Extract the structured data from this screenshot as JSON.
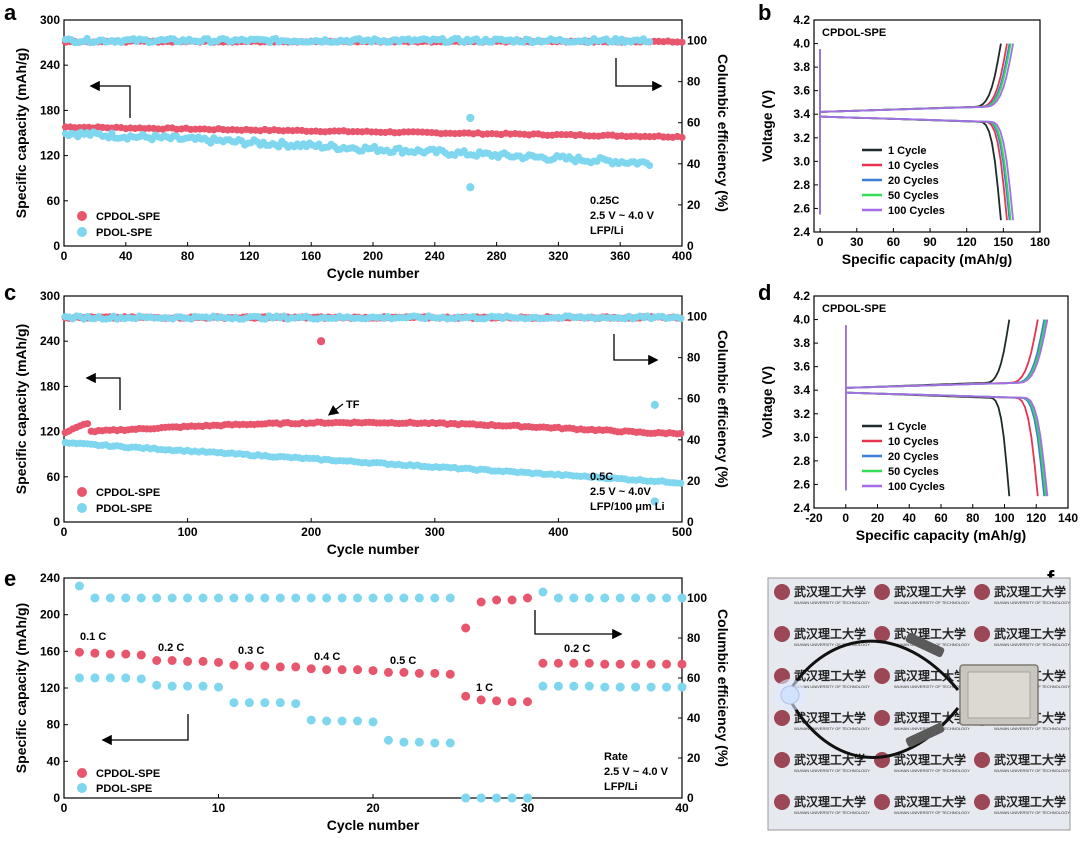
{
  "colors": {
    "cpdol": "#e8566e",
    "pdol": "#7fd6ef",
    "c1": "#1f2a2a",
    "c10": "#e8344e",
    "c20": "#3d7ed6",
    "c50": "#33dd55",
    "c100": "#a66ce8"
  },
  "chart_data": [
    {
      "id": "a",
      "type": "scatter",
      "panel_label": "a",
      "xlabel": "Cycle number",
      "ylabel": "Specific capacity (mAh/g)",
      "y2label": "Columbic efficiency (%)",
      "xlim": [
        0,
        400
      ],
      "ylim": [
        0,
        300
      ],
      "y2lim": [
        0,
        110
      ],
      "xticks": [
        "0",
        "40",
        "80",
        "120",
        "160",
        "200",
        "240",
        "280",
        "320",
        "360",
        "400"
      ],
      "yticks": [
        "0",
        "60",
        "120",
        "180",
        "240",
        "300"
      ],
      "y2ticks": [
        "0",
        "20",
        "40",
        "60",
        "80",
        "100"
      ],
      "series": [
        {
          "name": "CPDOL-SPE",
          "axis": "left",
          "kind": "capacity",
          "start": 158,
          "end": 145,
          "n": 400,
          "jitter": 1
        },
        {
          "name": "PDOL-SPE",
          "axis": "left",
          "kind": "capacity",
          "start": 150,
          "end": 110,
          "n": 380,
          "jitter": 4,
          "outliers": [
            [
              263,
              170
            ],
            [
              263,
              78
            ]
          ]
        },
        {
          "name": "CPDOL-SPE",
          "axis": "right",
          "kind": "efficiency",
          "value": 99.5,
          "n": 400,
          "jitter": 0.3
        },
        {
          "name": "PDOL-SPE",
          "axis": "right",
          "kind": "efficiency",
          "value": 100,
          "n": 380,
          "jitter": 1
        }
      ],
      "legend": [
        "CPDOL-SPE",
        "PDOL-SPE"
      ],
      "annotation": [
        "0.25C",
        "2.5 V ~ 4.0 V",
        "LFP/Li"
      ]
    },
    {
      "id": "b",
      "type": "line",
      "panel_label": "b",
      "title": "CPDOL-SPE",
      "xlabel": "Specific capacity (mAh/g)",
      "ylabel": "Voltage (V)",
      "xlim": [
        -5,
        180
      ],
      "ylim": [
        2.4,
        4.2
      ],
      "xticks": [
        "0",
        "30",
        "60",
        "90",
        "120",
        "150",
        "180"
      ],
      "yticks": [
        "2.4",
        "2.6",
        "2.8",
        "3.0",
        "3.2",
        "3.4",
        "3.6",
        "3.8",
        "4.0",
        "4.2"
      ],
      "series": [
        {
          "name": "1 Cycle",
          "capacity": 148
        },
        {
          "name": "10 Cycles",
          "capacity": 153
        },
        {
          "name": "20 Cycles",
          "capacity": 155
        },
        {
          "name": "50 Cycles",
          "capacity": 156
        },
        {
          "name": "100 Cycles",
          "capacity": 158
        }
      ]
    },
    {
      "id": "c",
      "type": "scatter",
      "panel_label": "c",
      "xlabel": "Cycle number",
      "ylabel": "Specific capacity (mAh/g)",
      "y2label": "Columbic efficiency (%)",
      "xlim": [
        0,
        500
      ],
      "ylim": [
        0,
        300
      ],
      "y2lim": [
        0,
        110
      ],
      "xticks": [
        "0",
        "100",
        "200",
        "300",
        "400",
        "500"
      ],
      "yticks": [
        "0",
        "60",
        "120",
        "180",
        "240",
        "300"
      ],
      "y2ticks": [
        "0",
        "20",
        "40",
        "60",
        "80",
        "100"
      ],
      "series": [
        {
          "name": "CPDOL-SPE",
          "axis": "left",
          "kind": "capacity",
          "start": 118,
          "end": 118,
          "peak": 132,
          "n": 500,
          "jitter": 1
        },
        {
          "name": "PDOL-SPE",
          "axis": "left",
          "kind": "capacity",
          "start": 105,
          "end": 52,
          "n": 500,
          "jitter": 1
        },
        {
          "name": "CPDOL-SPE",
          "axis": "right",
          "kind": "efficiency",
          "value": 99.5,
          "n": 500,
          "jitter": 0.4,
          "outliers": [
            [
              208,
              88
            ]
          ]
        },
        {
          "name": "PDOL-SPE",
          "axis": "right",
          "kind": "efficiency",
          "value": 99.5,
          "n": 500,
          "jitter": 0.8,
          "outliers": [
            [
              478,
              57
            ],
            [
              478,
              10
            ]
          ]
        }
      ],
      "legend": [
        "CPDOL-SPE",
        "PDOL-SPE"
      ],
      "annotation": [
        "0.5C",
        "2.5 V ~ 4.0V",
        "LFP/100 μm Li"
      ],
      "tf_label": "TF"
    },
    {
      "id": "d",
      "type": "line",
      "panel_label": "d",
      "title": "CPDOL-SPE",
      "xlabel": "Specific capacity (mAh/g)",
      "ylabel": "Voltage (V)",
      "xlim": [
        -20,
        140
      ],
      "ylim": [
        2.4,
        4.2
      ],
      "xticks": [
        "-20",
        "0",
        "20",
        "40",
        "60",
        "80",
        "100",
        "120",
        "140"
      ],
      "yticks": [
        "2.4",
        "2.6",
        "2.8",
        "3.0",
        "3.2",
        "3.4",
        "3.6",
        "3.8",
        "4.0",
        "4.2"
      ],
      "series": [
        {
          "name": "1 Cycle",
          "capacity": 103
        },
        {
          "name": "10 Cycles",
          "capacity": 121
        },
        {
          "name": "20 Cycles",
          "capacity": 125
        },
        {
          "name": "50 Cycles",
          "capacity": 126
        },
        {
          "name": "100 Cycles",
          "capacity": 127
        }
      ]
    },
    {
      "id": "e",
      "type": "scatter",
      "panel_label": "e",
      "xlabel": "Cycle number",
      "ylabel": "Specific capacity (mAh/g)",
      "y2label": "Columbic efficiency (%)",
      "xlim": [
        0,
        40
      ],
      "ylim": [
        0,
        240
      ],
      "y2lim": [
        0,
        110
      ],
      "xticks": [
        "0",
        "10",
        "20",
        "30",
        "40"
      ],
      "yticks": [
        "0",
        "40",
        "80",
        "120",
        "160",
        "200",
        "240"
      ],
      "y2ticks": [
        "0",
        "20",
        "40",
        "60",
        "80",
        "100"
      ],
      "cpdol_capacity": [
        159,
        158,
        157,
        157,
        156,
        150,
        150,
        149,
        149,
        148,
        145,
        144,
        144,
        143,
        143,
        141,
        140,
        140,
        140,
        139,
        137,
        137,
        136,
        136,
        135,
        111,
        107,
        106,
        105,
        105,
        147,
        147,
        147,
        147,
        146,
        146,
        146,
        146,
        146,
        146
      ],
      "pdol_capacity": [
        131,
        131,
        131,
        131,
        130,
        123,
        122,
        122,
        122,
        121,
        104,
        104,
        104,
        104,
        103,
        85,
        84,
        84,
        84,
        83,
        63,
        61,
        61,
        60,
        60,
        0,
        0,
        0,
        0,
        0,
        122,
        122,
        122,
        122,
        121,
        121,
        121,
        121,
        121,
        121
      ],
      "cpdol_ce": [
        null,
        null,
        null,
        null,
        null,
        null,
        null,
        null,
        null,
        null,
        null,
        null,
        null,
        null,
        null,
        null,
        null,
        null,
        null,
        null,
        null,
        null,
        null,
        null,
        null,
        85,
        98,
        99,
        99,
        100,
        null,
        null,
        null,
        null,
        null,
        null,
        null,
        null,
        null,
        null
      ],
      "pdol_ce": [
        106,
        100,
        100,
        100,
        100,
        100,
        100,
        100,
        100,
        100,
        100,
        100,
        100,
        100,
        100,
        100,
        100,
        100,
        100,
        100,
        100,
        100,
        100,
        100,
        100,
        0,
        0,
        0,
        0,
        0,
        103,
        100,
        100,
        100,
        100,
        100,
        100,
        100,
        100,
        100
      ],
      "rate_labels": [
        "0.1 C",
        "0.2 C",
        "0.3 C",
        "0.4 C",
        "0.5 C",
        "1 C",
        "0.2 C"
      ],
      "legend": [
        "CPDOL-SPE",
        "PDOL-SPE"
      ],
      "annotation": [
        "Rate",
        "2.5 V ~ 4.0 V",
        "LFP/Li"
      ]
    }
  ],
  "panel_f": {
    "label": "f",
    "photo_text": "武汉理工大学",
    "photo_subtext": "WUHAN UNIVERSITY OF TECHNOLOGY"
  }
}
